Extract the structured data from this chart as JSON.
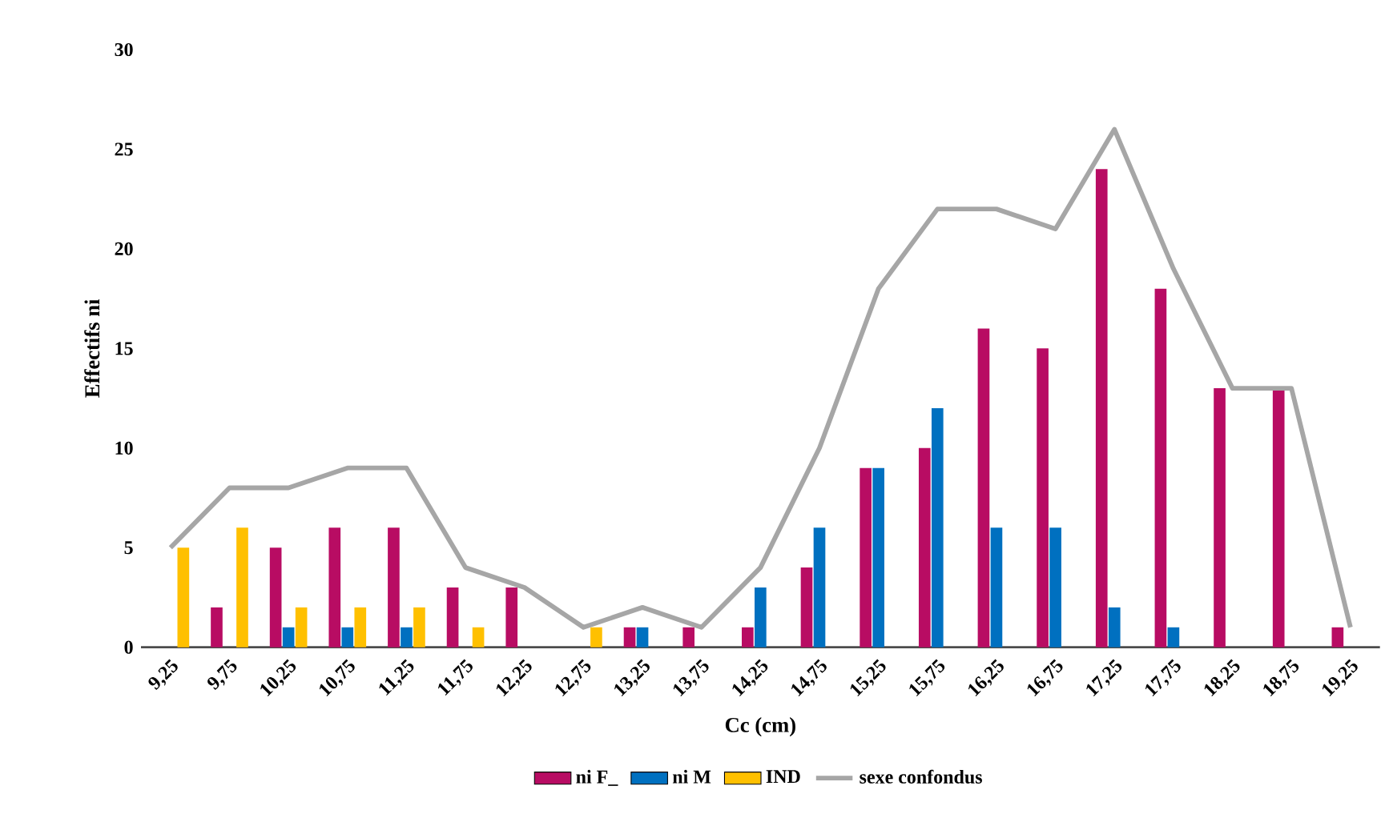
{
  "chart_data": {
    "type": "bar",
    "xlabel": "Cc (cm)",
    "ylabel": "Effectifs ni",
    "categories": [
      "9,25",
      "9,75",
      "10,25",
      "10,75",
      "11,25",
      "11,75",
      "12,25",
      "12,75",
      "13,25",
      "13,75",
      "14,25",
      "14,75",
      "15,25",
      "15,75",
      "16,25",
      "16,75",
      "17,25",
      "17,75",
      "18,25",
      "18,75",
      "19,25"
    ],
    "series": [
      {
        "name": "ni F_",
        "color": "#b80c63",
        "values": [
          0,
          2,
          5,
          6,
          6,
          3,
          3,
          0,
          1,
          1,
          1,
          4,
          9,
          10,
          16,
          15,
          24,
          18,
          13,
          13,
          1
        ]
      },
      {
        "name": "ni M",
        "color": "#0070c0",
        "values": [
          0,
          0,
          1,
          1,
          1,
          0,
          0,
          0,
          1,
          0,
          3,
          6,
          9,
          12,
          6,
          6,
          2,
          1,
          0,
          0,
          0
        ]
      },
      {
        "name": "IND",
        "color": "#ffc000",
        "values": [
          5,
          6,
          2,
          2,
          2,
          1,
          0,
          1,
          0,
          0,
          0,
          0,
          0,
          0,
          0,
          0,
          0,
          0,
          0,
          0,
          0
        ]
      },
      {
        "name": "sexe confondus",
        "type": "line",
        "color": "#a6a6a6",
        "values": [
          5,
          8,
          8,
          9,
          9,
          4,
          3,
          1,
          2,
          1,
          4,
          10,
          18,
          22,
          22,
          21,
          26,
          19,
          13,
          13,
          1
        ]
      }
    ],
    "ylim": [
      0,
      30
    ],
    "yticks": [
      0,
      5,
      10,
      15,
      20,
      25,
      30
    ],
    "legend": "bottom"
  }
}
